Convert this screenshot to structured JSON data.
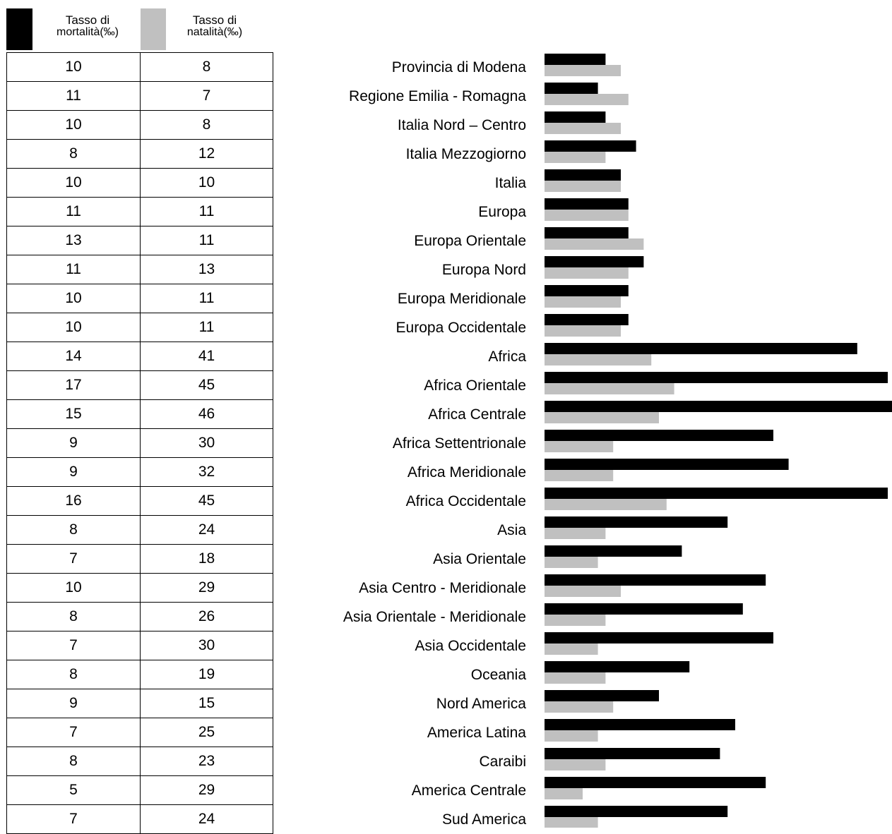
{
  "colors": {
    "mortality": "#000000",
    "natality": "#c0c0c0"
  },
  "header": {
    "mortality_line1": "Tasso di",
    "mortality_line2": "mortalità(‰)",
    "natality_line1": "Tasso di",
    "natality_line2": "natalità(‰)"
  },
  "chart_data": {
    "type": "bar",
    "orientation": "horizontal",
    "categories": [
      "Provincia di Modena",
      "Regione Emilia - Romagna",
      "Italia Nord – Centro",
      "Italia Mezzogiorno",
      "Italia",
      "Europa",
      "Europa Orientale",
      "Europa Nord",
      "Europa Meridionale",
      "Europa Occidentale",
      "Africa",
      "Africa Orientale",
      "Africa Centrale",
      "Africa Settentrionale",
      "Africa Meridionale",
      "Africa Occidentale",
      "Asia",
      "Asia Orientale",
      "Asia Centro - Meridionale",
      "Asia Orientale - Meridionale",
      "Asia Occidentale",
      "Oceania",
      "Nord America",
      "America Latina",
      "Caraibi",
      "America Centrale",
      "Sud America"
    ],
    "series": [
      {
        "name": "Tasso di mortalità(‰)",
        "color": "#000000",
        "values": [
          10,
          11,
          10,
          8,
          10,
          11,
          13,
          11,
          10,
          10,
          14,
          17,
          15,
          9,
          9,
          16,
          8,
          7,
          10,
          8,
          7,
          8,
          9,
          7,
          8,
          5,
          7
        ]
      },
      {
        "name": "Tasso di natalità(‰)",
        "color": "#c0c0c0",
        "values": [
          8,
          7,
          8,
          12,
          10,
          11,
          11,
          13,
          11,
          11,
          41,
          45,
          46,
          30,
          32,
          45,
          24,
          18,
          29,
          26,
          30,
          19,
          15,
          25,
          23,
          29,
          24
        ]
      }
    ],
    "xlim": [
      0,
      46
    ],
    "grid": false,
    "legend": "top-left"
  }
}
